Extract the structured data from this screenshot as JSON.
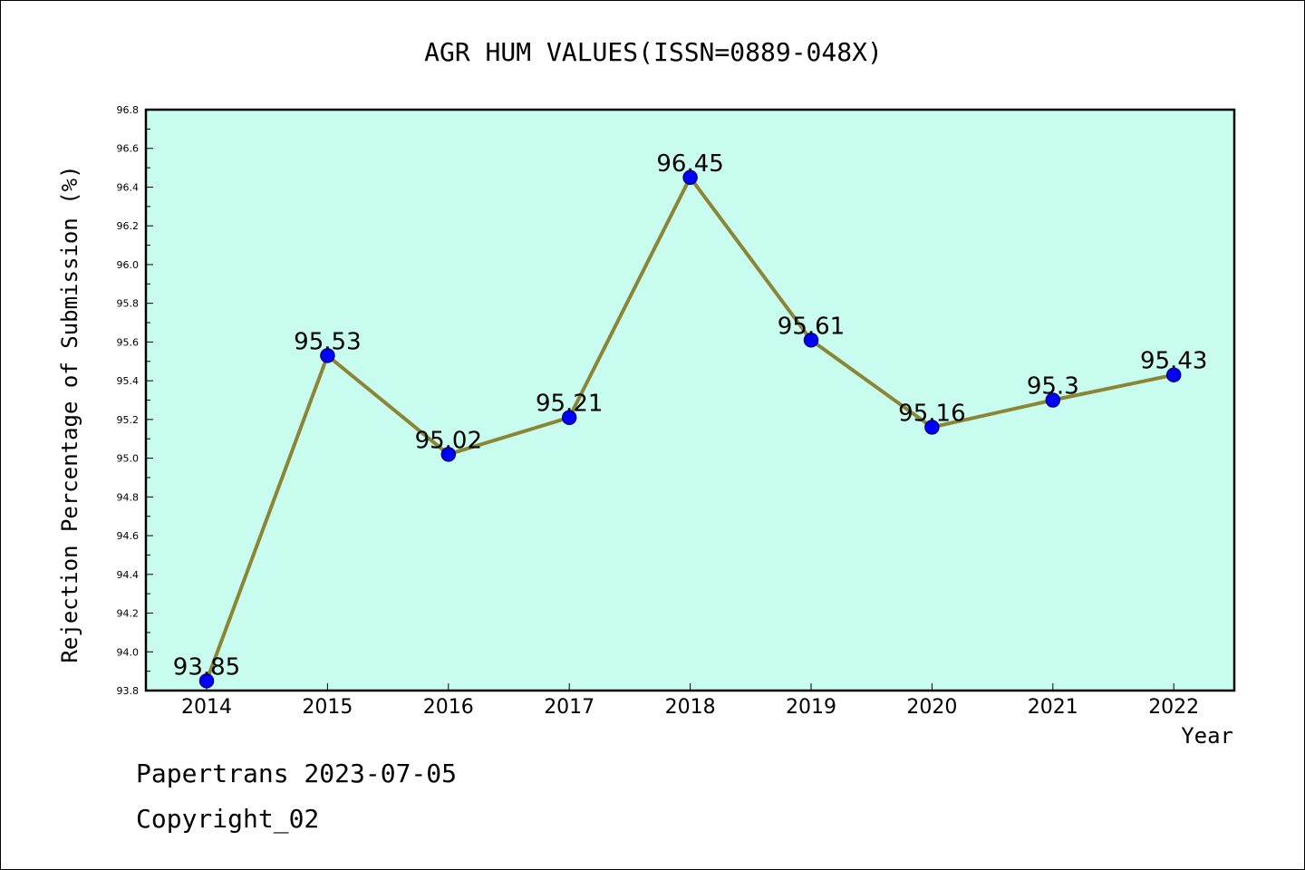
{
  "chart_data": {
    "type": "line",
    "title": "AGR HUM VALUES(ISSN=0889-048X)",
    "xlabel": "Year",
    "ylabel": "Rejection Percentage of Submission (%)",
    "categories": [
      "2014",
      "2015",
      "2016",
      "2017",
      "2018",
      "2019",
      "2020",
      "2021",
      "2022"
    ],
    "series": [
      {
        "values": [
          93.85,
          95.53,
          95.02,
          95.21,
          96.45,
          95.61,
          95.16,
          95.3,
          95.43
        ],
        "labels": [
          "93.85",
          "95.53",
          "95.02",
          "95.21",
          "96.45",
          "95.61",
          "95.16",
          "95.3",
          "95.43"
        ]
      }
    ],
    "ylim": [
      93.8,
      96.8
    ],
    "yticks": [
      "93.8",
      "94.0",
      "94.2",
      "94.4",
      "94.6",
      "94.8",
      "95.0",
      "95.2",
      "95.4",
      "95.6",
      "95.8",
      "96.0",
      "96.2",
      "96.4",
      "96.6",
      "96.8"
    ],
    "grid": false,
    "legend": "none",
    "colors": {
      "plot_background": "#c8fcee",
      "line": "#8b8535",
      "marker_fill": "#0000ff",
      "marker_edge": "#00008b",
      "text": "#000000"
    }
  },
  "footer": {
    "date_line": "Papertrans 2023-07-05",
    "copyright_line": "Copyright_02"
  }
}
